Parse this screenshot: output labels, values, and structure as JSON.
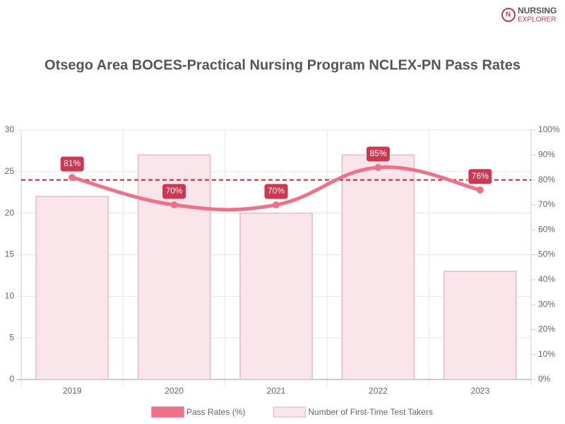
{
  "logo": {
    "line1": "NURSING",
    "line2": "EXPLORER"
  },
  "chart_data": {
    "type": "bar-line",
    "title": "Otsego Area BOCES-Practical Nursing Program NCLEX-PN Pass Rates",
    "categories": [
      "2019",
      "2020",
      "2021",
      "2022",
      "2023"
    ],
    "series": [
      {
        "name": "Pass Rates (%)",
        "type": "line",
        "axis": "y2",
        "color": "#f07088",
        "values": [
          81,
          70,
          70,
          85,
          76
        ],
        "value_labels": [
          "81%",
          "70%",
          "70%",
          "85%",
          "76%"
        ],
        "label_color": "#d0364f"
      },
      {
        "name": "Number of First-Time Test Takers",
        "type": "bar",
        "color": "#f9e5ea",
        "border": "#e3c9cf",
        "values": [
          22,
          27,
          20,
          27,
          13
        ]
      }
    ],
    "reference_line": {
      "value": 80,
      "axis": "y2",
      "color": "#d81e2c"
    },
    "ylim": [
      0,
      30
    ],
    "yticks": [
      0,
      5,
      10,
      15,
      20,
      25,
      30
    ],
    "y2lim": [
      0,
      100
    ],
    "y2ticks": [
      {
        "value": 0,
        "label": "0%"
      },
      {
        "value": 10,
        "label": "10%"
      },
      {
        "value": 20,
        "label": "20%"
      },
      {
        "value": 30,
        "label": "30%"
      },
      {
        "value": 40,
        "label": "40%"
      },
      {
        "value": 50,
        "label": "50%"
      },
      {
        "value": 60,
        "label": "60%"
      },
      {
        "value": 70,
        "label": "70%"
      },
      {
        "value": 80,
        "label": "80%"
      },
      {
        "value": 90,
        "label": "90%"
      },
      {
        "value": 100,
        "label": "100%"
      }
    ],
    "grid": true
  }
}
